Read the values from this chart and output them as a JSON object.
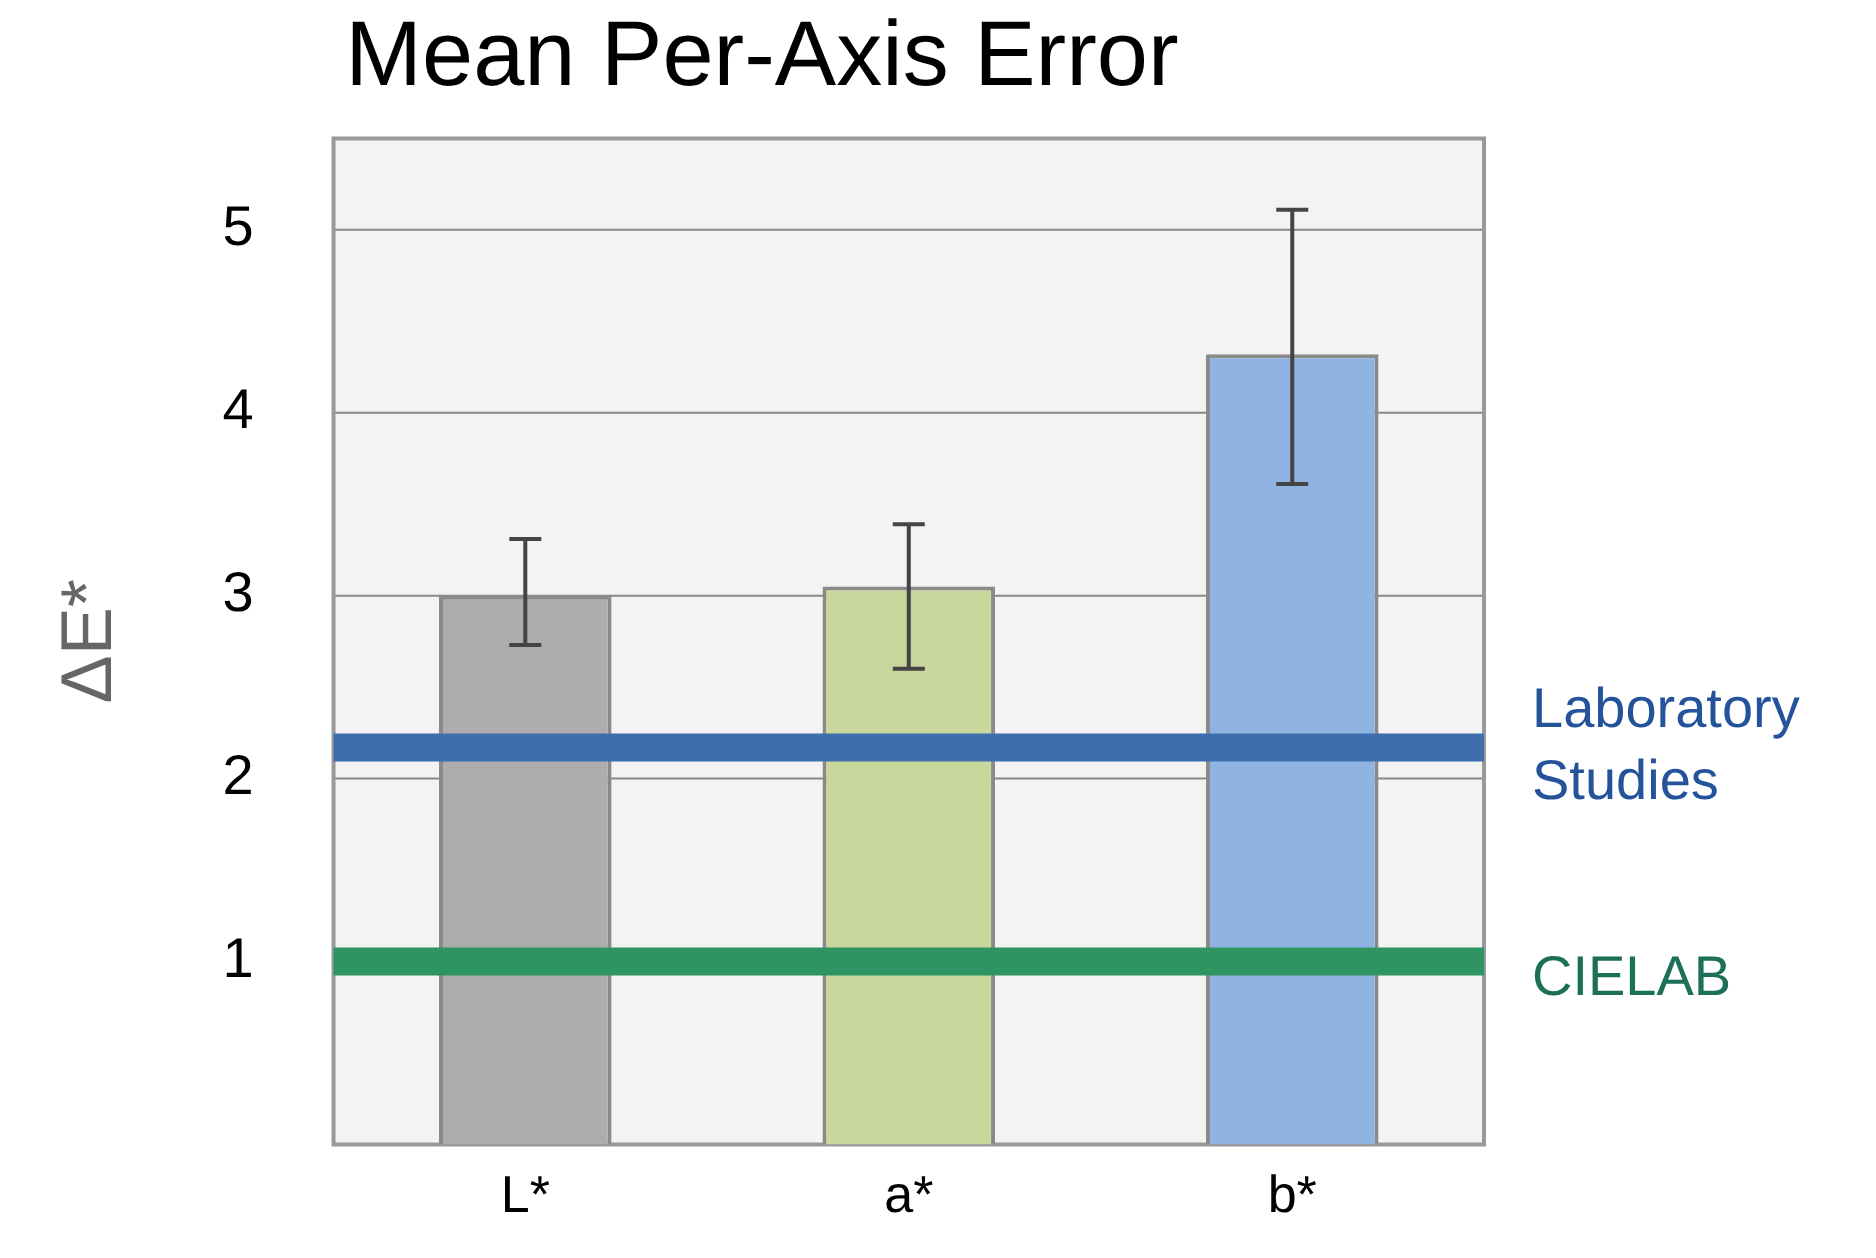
{
  "chart_data": {
    "type": "bar",
    "title": "Mean Per-Axis Error",
    "ylabel": "ΔE*",
    "categories": [
      "L*",
      "a*",
      "b*"
    ],
    "values": [
      3.0,
      3.05,
      4.32
    ],
    "colors": [
      "#adadad",
      "#c9d79c",
      "#8fb4e3"
    ],
    "errors": [
      [
        2.73,
        3.31
      ],
      [
        2.6,
        3.39
      ],
      [
        3.61,
        5.11
      ]
    ],
    "ylim": [
      0,
      5.5
    ],
    "yticks": [
      1,
      2,
      3,
      4,
      5
    ],
    "grid": "y",
    "ref_lines": [
      {
        "axis": "y",
        "value": 2.17,
        "label": "Laboratory Studies",
        "color": "#3e6fac"
      },
      {
        "axis": "y",
        "value": 1.0,
        "label": "CIELAB",
        "color": "#2e9462"
      }
    ]
  }
}
